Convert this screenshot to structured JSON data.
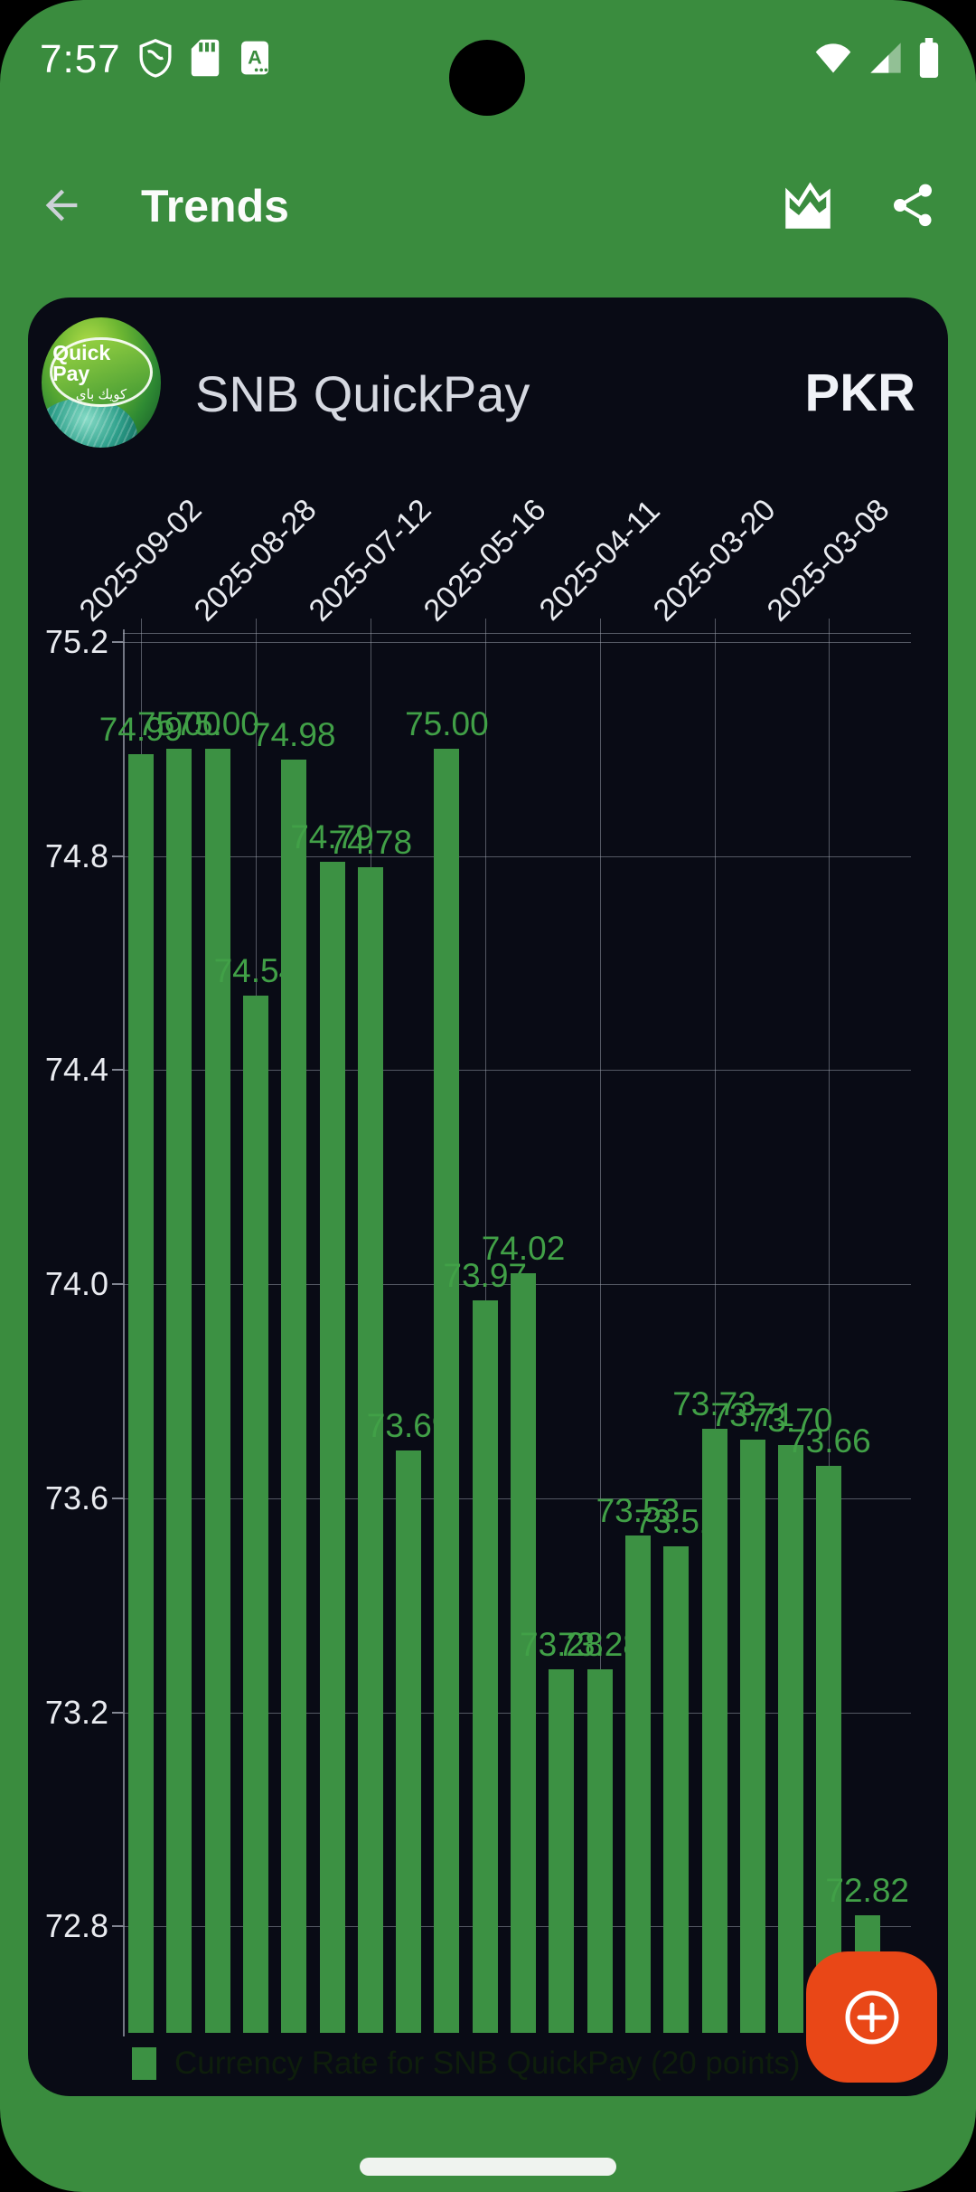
{
  "status_bar": {
    "time": "7:57",
    "left_icons": [
      "shield",
      "sd-card",
      "letter-a"
    ],
    "right_icons": [
      "wifi",
      "signal",
      "battery"
    ]
  },
  "app_bar": {
    "title": "Trends",
    "actions": [
      "area-chart",
      "share"
    ]
  },
  "card": {
    "logo": {
      "title": "Quick Pay",
      "subtitle": "كويك باي"
    },
    "provider": "SNB QuickPay",
    "currency": "PKR"
  },
  "chart_data": {
    "type": "bar",
    "title": "Currency Rate for SNB QuickPay",
    "legend": "Currency Rate for SNB QuickPay (20 points)",
    "legend_position": "bottom",
    "grid": true,
    "categories_shown": [
      "2025-09-02",
      "2025-08-28",
      "2025-07-12",
      "2025-05-16",
      "2025-04-11",
      "2025-03-20",
      "2025-03-08"
    ],
    "category_tick_indices": [
      0,
      3,
      6,
      9,
      12,
      15,
      18
    ],
    "values": [
      74.99,
      75.0,
      75.0,
      74.54,
      74.98,
      74.79,
      74.78,
      73.69,
      75.0,
      73.97,
      74.02,
      73.28,
      73.28,
      73.53,
      73.51,
      73.73,
      73.71,
      73.7,
      73.66,
      72.82
    ],
    "value_labels": [
      "74.99",
      "75.00",
      "75.00",
      "74.54",
      "74.98",
      "74.79",
      "74.78",
      "73.69",
      "75.00",
      "73.97",
      "74.02",
      "73.28",
      "73.28",
      "73.53",
      "73.51",
      "73.73",
      "73.71",
      "73.70",
      "73.66",
      "72.82"
    ],
    "yticks": [
      "75.2",
      "74.8",
      "74.4",
      "74.0",
      "73.6",
      "73.2",
      "72.8"
    ],
    "ylim": [
      72.6,
      75.22
    ],
    "bar_color": "#3c9143",
    "value_label_color": "#41a047",
    "axis_label_color": "#e9ebf0",
    "legend_text_color": "#0e1e0c",
    "background_color": "#090b15"
  },
  "fab": {
    "label": "add"
  },
  "colors": {
    "accent_green": "#3a8c3e",
    "fab_orange": "#e94717"
  }
}
